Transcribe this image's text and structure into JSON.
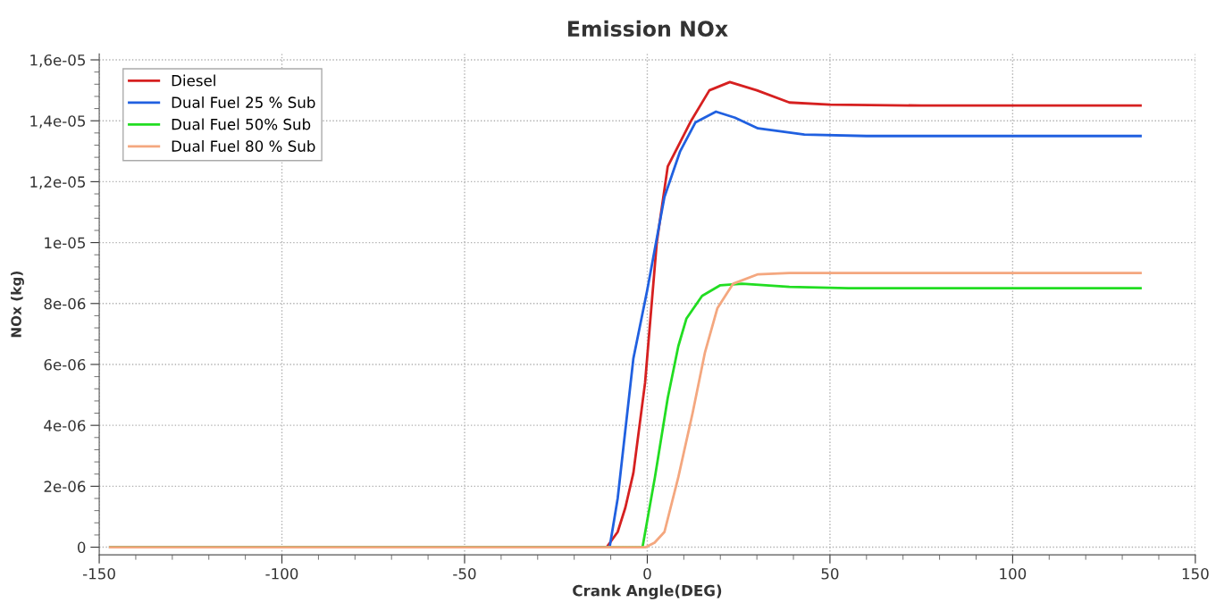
{
  "chart_data": {
    "type": "line",
    "title": "Emission NOx",
    "xlabel": "Crank Angle(DEG)",
    "ylabel": "NOx (kg)",
    "xlim": [
      -150,
      150
    ],
    "ylim": [
      -2.5e-07,
      1.62e-05
    ],
    "xticks": [
      -150,
      {
        "value": -140,
        "label": null
      },
      {
        "value": -130,
        "label": null
      },
      {
        "value": -120,
        "label": null
      },
      {
        "value": -110,
        "label": null
      },
      -100,
      {
        "value": -90,
        "label": null
      },
      {
        "value": -80,
        "label": null
      },
      {
        "value": -70,
        "label": null
      },
      {
        "value": -60,
        "label": null
      },
      -50,
      {
        "value": -40,
        "label": null
      },
      {
        "value": -30,
        "label": null
      },
      {
        "value": -20,
        "label": null
      },
      {
        "value": -10,
        "label": null
      },
      0,
      {
        "value": 10,
        "label": null
      },
      {
        "value": 20,
        "label": null
      },
      {
        "value": 30,
        "label": null
      },
      {
        "value": 40,
        "label": null
      },
      50,
      {
        "value": 60,
        "label": null
      },
      {
        "value": 70,
        "label": null
      },
      {
        "value": 80,
        "label": null
      },
      {
        "value": 90,
        "label": null
      },
      100,
      {
        "value": 110,
        "label": null
      },
      {
        "value": 120,
        "label": null
      },
      {
        "value": 130,
        "label": null
      },
      {
        "value": 140,
        "label": null
      },
      150
    ],
    "yticks": [
      0,
      {
        "value": 4e-07,
        "label": null
      },
      {
        "value": 8e-07,
        "label": null
      },
      {
        "value": 1.2e-06,
        "label": null
      },
      {
        "value": 1.6e-06,
        "label": null
      },
      {
        "value": 2e-06,
        "label": "2e-06"
      },
      {
        "value": 2.4e-06,
        "label": null
      },
      {
        "value": 2.8e-06,
        "label": null
      },
      {
        "value": 3.2e-06,
        "label": null
      },
      {
        "value": 3.6e-06,
        "label": null
      },
      {
        "value": 4e-06,
        "label": "4e-06"
      },
      {
        "value": 4.4e-06,
        "label": null
      },
      {
        "value": 4.8e-06,
        "label": null
      },
      {
        "value": 5.2e-06,
        "label": null
      },
      {
        "value": 5.6e-06,
        "label": null
      },
      {
        "value": 6e-06,
        "label": "6e-06"
      },
      {
        "value": 6.4e-06,
        "label": null
      },
      {
        "value": 6.8e-06,
        "label": null
      },
      {
        "value": 7.2e-06,
        "label": null
      },
      {
        "value": 7.6e-06,
        "label": null
      },
      {
        "value": 8e-06,
        "label": "8e-06"
      },
      {
        "value": 8.4e-06,
        "label": null
      },
      {
        "value": 8.8e-06,
        "label": null
      },
      {
        "value": 9.2e-06,
        "label": null
      },
      {
        "value": 9.6e-06,
        "label": null
      },
      {
        "value": 1e-05,
        "label": "1e-05"
      },
      {
        "value": 1.04e-05,
        "label": null
      },
      {
        "value": 1.08e-05,
        "label": null
      },
      {
        "value": 1.12e-05,
        "label": null
      },
      {
        "value": 1.16e-05,
        "label": null
      },
      {
        "value": 1.2e-05,
        "label": "1,2e-05"
      },
      {
        "value": 1.24e-05,
        "label": null
      },
      {
        "value": 1.28e-05,
        "label": null
      },
      {
        "value": 1.32e-05,
        "label": null
      },
      {
        "value": 1.36e-05,
        "label": null
      },
      {
        "value": 1.4e-05,
        "label": "1,4e-05"
      },
      {
        "value": 1.44e-05,
        "label": null
      },
      {
        "value": 1.48e-05,
        "label": null
      },
      {
        "value": 1.52e-05,
        "label": null
      },
      {
        "value": 1.56e-05,
        "label": null
      },
      {
        "value": 1.6e-05,
        "label": "1,6e-05"
      }
    ],
    "grid": true,
    "legend": "top left",
    "marker": "none",
    "line_style": "solid",
    "series": [
      {
        "name": "Diesel",
        "color": "#d62020",
        "x": [
          -147,
          -11.1,
          -8.1,
          -6,
          -3.8,
          -0.6,
          2.6,
          5.6,
          12,
          17,
          22.6,
          30,
          38.9,
          50,
          75,
          135
        ],
        "values": [
          0,
          0,
          5e-07,
          1.3e-06,
          2.44e-06,
          5.4e-06,
          1e-05,
          1.25e-05,
          1.4e-05,
          1.5e-05,
          1.527e-05,
          1.5e-05,
          1.46e-05,
          1.453e-05,
          1.45e-05,
          1.45e-05
        ]
      },
      {
        "name": "Dual Fuel 25 % Sub",
        "color": "#2060e0",
        "x": [
          -147,
          -10.3,
          -8.1,
          -3.8,
          0,
          4.7,
          9,
          13.2,
          18.8,
          24,
          30.3,
          43,
          60,
          135
        ],
        "values": [
          0,
          0,
          1.6e-06,
          6.2e-06,
          8.45e-06,
          1.15e-05,
          1.3e-05,
          1.395e-05,
          1.43e-05,
          1.41e-05,
          1.375e-05,
          1.355e-05,
          1.35e-05,
          1.35e-05
        ]
      },
      {
        "name": "Dual Fuel 50% Sub",
        "color": "#22dd22",
        "x": [
          -147,
          -1.3,
          2.1,
          5.6,
          8.5,
          10.7,
          15,
          20,
          26,
          38.9,
          55,
          135
        ],
        "values": [
          0,
          0,
          2.3e-06,
          4.9e-06,
          6.6e-06,
          7.5e-06,
          8.25e-06,
          8.6e-06,
          8.65e-06,
          8.55e-06,
          8.5e-06,
          8.5e-06
        ]
      },
      {
        "name": "Dual Fuel 80 % Sub",
        "color": "#f4a77f",
        "x": [
          -147,
          -0.4,
          2,
          4.7,
          8.5,
          12.4,
          15.8,
          19.2,
          23.5,
          30.3,
          38.9,
          135
        ],
        "values": [
          0,
          0,
          1.5e-07,
          5e-07,
          2.3e-06,
          4.4e-06,
          6.4e-06,
          7.85e-06,
          8.65e-06,
          8.96e-06,
          9e-06,
          9e-06
        ]
      }
    ]
  }
}
